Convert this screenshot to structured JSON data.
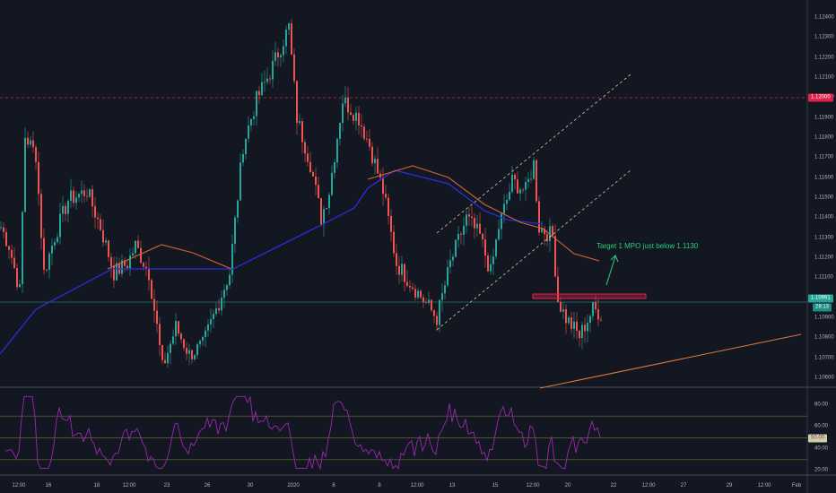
{
  "chart_data": {
    "type": "candlestick",
    "symbol_pair": "EUR/USD",
    "price_axis": {
      "ticks": [
        "1.12400",
        "1.12300",
        "1.12200",
        "1.12100",
        "1.12000",
        "1.11900",
        "1.11800",
        "1.11700",
        "1.11600",
        "1.11500",
        "1.11400",
        "1.11300",
        "1.11200",
        "1.11100",
        "1.10900",
        "1.10800",
        "1.10700",
        "1.10600"
      ],
      "range": [
        1.1055,
        1.1247
      ]
    },
    "time_axis": {
      "ticks": [
        {
          "label": "12:00",
          "bar": 7
        },
        {
          "label": "16",
          "bar": 18
        },
        {
          "label": "18",
          "bar": 36
        },
        {
          "label": "12:00",
          "bar": 48
        },
        {
          "label": "23",
          "bar": 62
        },
        {
          "label": "26",
          "bar": 77
        },
        {
          "label": "30",
          "bar": 93
        },
        {
          "label": "2020",
          "bar": 109
        },
        {
          "label": "6",
          "bar": 124
        },
        {
          "label": "8",
          "bar": 141
        },
        {
          "label": "12:00",
          "bar": 155
        },
        {
          "label": "13",
          "bar": 168
        },
        {
          "label": "15",
          "bar": 184
        },
        {
          "label": "12:00",
          "bar": 198
        },
        {
          "label": "20",
          "bar": 211
        },
        {
          "label": "22",
          "bar": 228
        },
        {
          "label": "12:00",
          "bar": 241
        },
        {
          "label": "27",
          "bar": 254
        },
        {
          "label": "29",
          "bar": 271
        },
        {
          "label": "12:00",
          "bar": 284
        },
        {
          "label": "Feb",
          "bar": 296
        }
      ]
    },
    "price_path": [
      [
        0,
        1.11355
      ],
      [
        3,
        1.11264
      ],
      [
        7,
        1.11036
      ],
      [
        9,
        1.11809
      ],
      [
        13,
        1.11718
      ],
      [
        16,
        1.11127
      ],
      [
        20,
        1.11309
      ],
      [
        25,
        1.11491
      ],
      [
        32,
        1.11536
      ],
      [
        37,
        1.11355
      ],
      [
        42,
        1.11127
      ],
      [
        47,
        1.11173
      ],
      [
        50,
        1.11264
      ],
      [
        55,
        1.11127
      ],
      [
        58,
        1.10855
      ],
      [
        60,
        1.1065
      ],
      [
        65,
        1.10855
      ],
      [
        70,
        1.10718
      ],
      [
        75,
        1.10764
      ],
      [
        80,
        1.10945
      ],
      [
        85,
        1.11127
      ],
      [
        90,
        1.11764
      ],
      [
        95,
        1.11991
      ],
      [
        100,
        1.12127
      ],
      [
        107,
        1.12355
      ],
      [
        110,
        1.119
      ],
      [
        115,
        1.11673
      ],
      [
        119,
        1.114
      ],
      [
        122,
        1.11536
      ],
      [
        127,
        1.11991
      ],
      [
        133,
        1.119
      ],
      [
        137,
        1.11764
      ],
      [
        142,
        1.11536
      ],
      [
        147,
        1.11173
      ],
      [
        152,
        1.11082
      ],
      [
        157,
        1.10991
      ],
      [
        162,
        1.109
      ],
      [
        167,
        1.11173
      ],
      [
        173,
        1.114
      ],
      [
        178,
        1.11309
      ],
      [
        182,
        1.11127
      ],
      [
        185,
        1.11355
      ],
      [
        190,
        1.11582
      ],
      [
        195,
        1.11536
      ],
      [
        198,
        1.11673
      ],
      [
        200,
        1.11355
      ],
      [
        205,
        1.11309
      ],
      [
        207,
        1.10991
      ],
      [
        210,
        1.109
      ],
      [
        215,
        1.1081
      ],
      [
        220,
        1.10945
      ],
      [
        223,
        1.10923
      ]
    ],
    "last_price": "1.10991",
    "countdown": "28:13",
    "resistance_level": "1.12000",
    "rsi": {
      "ticks": [
        "80.00",
        "60.00",
        "40.00",
        "20.00"
      ],
      "range": [
        15,
        95
      ],
      "levels": [
        70,
        50,
        30
      ],
      "last": "50.00"
    },
    "annotation": "Target 1 MPO just below 1.1130"
  },
  "colors": {
    "bg": "#131722",
    "up": "#26a69a",
    "down": "#ef5350",
    "ma_slow": "#2a2ed6",
    "ma_fast": "#d2643c",
    "rsi": "#9c27b0",
    "resistance": "#e0224a",
    "last": "#26a69a"
  }
}
